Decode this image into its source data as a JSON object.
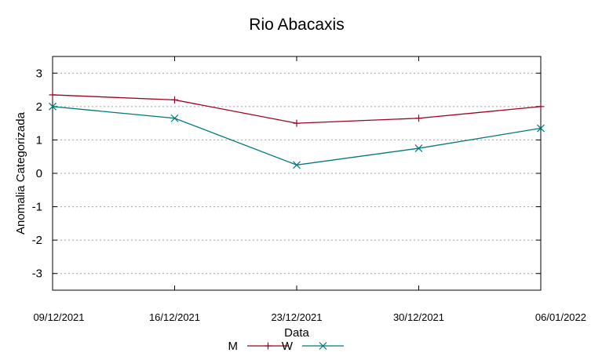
{
  "chart_data": {
    "type": "line",
    "title": "Rio Abacaxis",
    "xlabel": "Data",
    "ylabel": "Anomalia Categorizada",
    "categories": [
      "09/12/2021",
      "16/12/2021",
      "23/12/2021",
      "30/12/2021",
      "06/01/2022"
    ],
    "ylim": [
      -3.5,
      3.5
    ],
    "yticks": [
      -3,
      -2,
      -1,
      0,
      1,
      2,
      3
    ],
    "grid": true,
    "legend_position": "bottom-center",
    "series": [
      {
        "name": "M",
        "color": "#a0001e",
        "marker": "plus",
        "values": [
          2.35,
          2.2,
          1.5,
          1.65,
          2.0
        ]
      },
      {
        "name": "W",
        "color": "#00787a",
        "marker": "cross",
        "values": [
          2.0,
          1.65,
          0.25,
          0.75,
          1.35
        ]
      }
    ]
  }
}
